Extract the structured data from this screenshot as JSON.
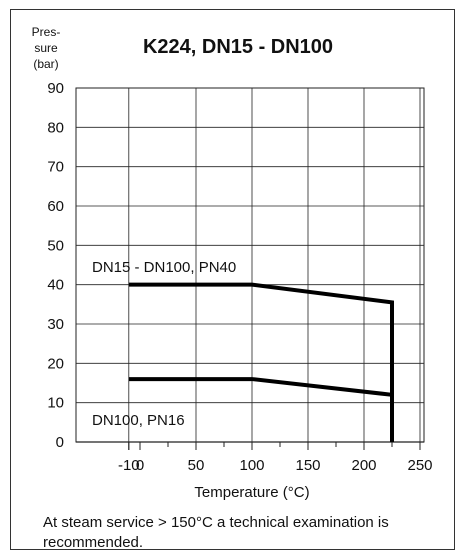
{
  "chart_data": {
    "type": "line",
    "title": "K224, DN15 - DN100",
    "ylabel_lines": [
      "Pres-",
      "sure",
      "(bar)"
    ],
    "xlabel": "Temperature (°C)",
    "xlim": [
      -10,
      250
    ],
    "ylim": [
      0,
      90
    ],
    "xticks": [
      -10,
      0,
      50,
      100,
      150,
      200,
      250
    ],
    "xgrid": [
      -10,
      50,
      100,
      150,
      200,
      250
    ],
    "yticks": [
      0,
      10,
      20,
      30,
      40,
      50,
      60,
      70,
      80,
      90
    ],
    "grid": true,
    "series": [
      {
        "name": "DN15 - DN100, PN40",
        "x": [
          -10,
          100,
          225,
          225
        ],
        "y": [
          40,
          40,
          35.5,
          0
        ]
      },
      {
        "name": "DN100, PN16",
        "x": [
          -10,
          100,
          225
        ],
        "y": [
          16,
          16,
          12
        ]
      }
    ],
    "line_color": "#000000"
  },
  "footnote": "At steam service > 150°C a technical examination is recommended."
}
